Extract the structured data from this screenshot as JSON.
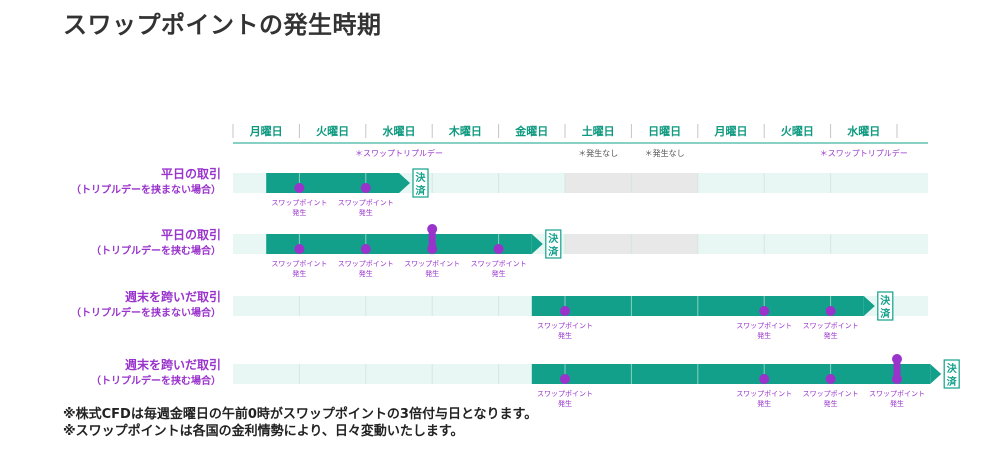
{
  "title": "スワップポイントの発生時期",
  "days": [
    "月曜日",
    "火曜日",
    "水曜日",
    "木曜日",
    "金曜日",
    "土曜日",
    "日曜日",
    "月曜日",
    "火曜日",
    "水曜日"
  ],
  "weekend_columns": [
    5,
    6
  ],
  "day_notes": [
    {
      "col": 2,
      "text": "＊スワップトリプルデー",
      "color": "#9933cc"
    },
    {
      "col": 5,
      "text": "＊発生なし",
      "color": "#555555"
    },
    {
      "col": 6,
      "text": "＊発生なし",
      "color": "#555555"
    },
    {
      "col": 9,
      "text": "＊スワップトリプルデー",
      "color": "#9933cc"
    }
  ],
  "settle_label": "決済",
  "point_label_line1": "スワップポイント",
  "point_label_line2": "発生",
  "rows": [
    {
      "title": "平日の取引",
      "subtitle": "（トリプルデーを挟まない場合）",
      "bar_start": 0.5,
      "bar_end": 2.5,
      "gray_cols": [
        5,
        6
      ],
      "points": [
        {
          "col": 1,
          "triple": false
        },
        {
          "col": 2,
          "triple": false
        }
      ]
    },
    {
      "title": "平日の取引",
      "subtitle": "（トリプルデーを挟む場合）",
      "bar_start": 0.5,
      "bar_end": 4.5,
      "gray_cols": [
        5,
        6
      ],
      "points": [
        {
          "col": 1,
          "triple": false
        },
        {
          "col": 2,
          "triple": false
        },
        {
          "col": 3,
          "triple": true
        },
        {
          "col": 4,
          "triple": false
        }
      ]
    },
    {
      "title": "週末を跨いだ取引",
      "subtitle": "（トリプルデーを挟まない場合）",
      "bar_start": 4.5,
      "bar_end": 9.5,
      "gray_cols": [],
      "points": [
        {
          "col": 5,
          "triple": false
        },
        {
          "col": 8,
          "triple": false
        },
        {
          "col": 9,
          "triple": false
        }
      ]
    },
    {
      "title": "週末を跨いだ取引",
      "subtitle": "（トリプルデーを挟む場合）",
      "bar_start": 4.5,
      "bar_end": 10.5,
      "gray_cols": [],
      "points": [
        {
          "col": 5,
          "triple": false
        },
        {
          "col": 8,
          "triple": false
        },
        {
          "col": 9,
          "triple": false
        },
        {
          "col": 10,
          "triple": true
        }
      ]
    }
  ],
  "colors": {
    "teal": "#12a08a",
    "header_text": "#0e9a7f",
    "purple": "#9933cc",
    "track": "#e8f7f3",
    "weekend": "#e8e8e8",
    "divider": "#c4c4c4"
  },
  "footnotes": [
    "※株式CFDは毎週金曜日の午前0時がスワップポイントの3倍付与日となります。",
    "※スワップポイントは各国の金利情勢により、日々変動いたします。"
  ]
}
